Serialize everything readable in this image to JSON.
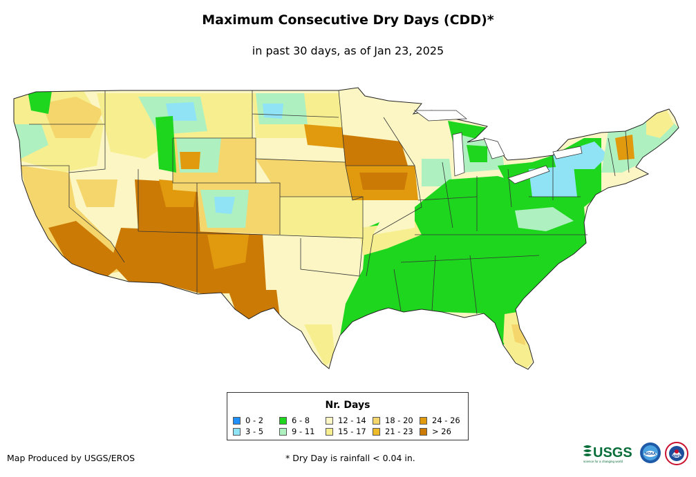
{
  "title": "Maximum Consecutive Dry Days (CDD)*",
  "subtitle": "in past 30 days, as of Jan 23, 2025",
  "legend": {
    "title": "Nr. Days",
    "items": [
      {
        "label": "0 - 2",
        "color": "#1e90ff"
      },
      {
        "label": "3 - 5",
        "color": "#8fe3f5"
      },
      {
        "label": "6 - 8",
        "color": "#1ed61e"
      },
      {
        "label": "9 - 11",
        "color": "#aef0c0"
      },
      {
        "label": "12 - 14",
        "color": "#fbf6c4"
      },
      {
        "label": "15 - 17",
        "color": "#f7ef8f"
      },
      {
        "label": "18 - 20",
        "color": "#f5d66c"
      },
      {
        "label": "21 - 23",
        "color": "#eebb2a"
      },
      {
        "label": "24 - 26",
        "color": "#e19a0e"
      },
      {
        "label": "> 26",
        "color": "#cc7a06"
      }
    ]
  },
  "credit": "Map Produced by USGS/EROS",
  "footnote": "* Dry Day is rainfall < 0.04 in.",
  "logos": {
    "usgs": "USGS",
    "usgs_tagline": "science for a changing world",
    "noaa": "NOAA",
    "nws": "NWS"
  }
}
